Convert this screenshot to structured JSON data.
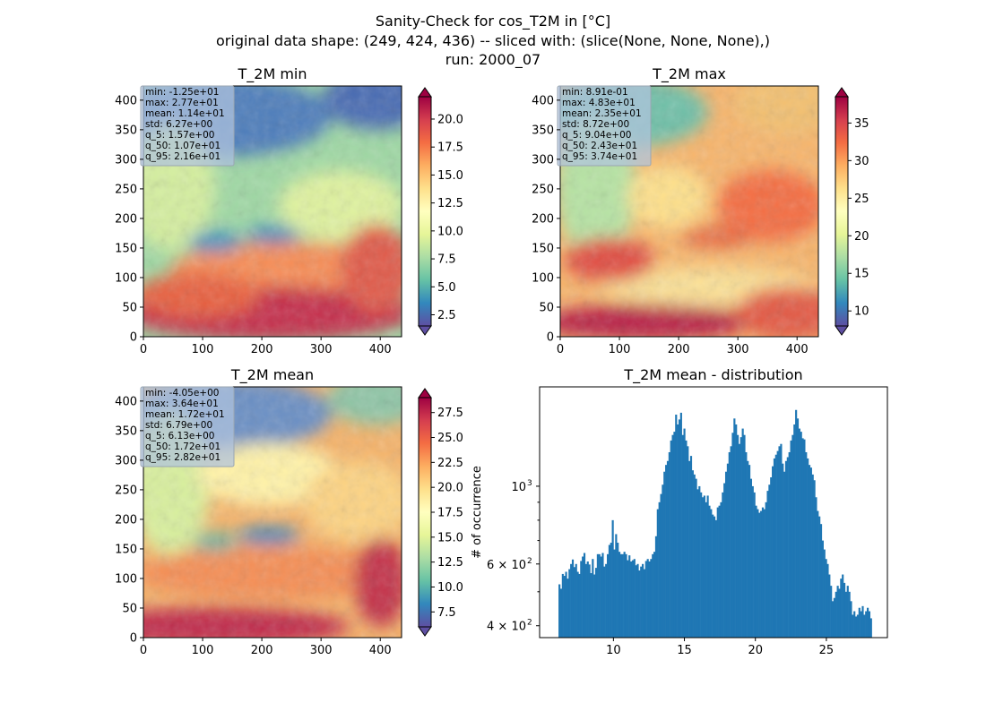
{
  "figure": {
    "title_lines": [
      "Sanity-Check for cos_T2M in [°C]",
      "original data shape: (249, 424, 436) -- sliced with: (slice(None, None, None),)",
      "run: 2000_07"
    ]
  },
  "colors": {
    "spectral_r": [
      "#5e4fa2",
      "#3288bd",
      "#66c2a5",
      "#abdda4",
      "#e6f598",
      "#ffffbf",
      "#fee08b",
      "#fdae61",
      "#f46d43",
      "#d53e4f",
      "#9e0142"
    ],
    "hist_bar": "#1f77b4",
    "statbox": "#b0c4de"
  },
  "chart_data": [
    {
      "type": "heatmap",
      "title": "T_2M min",
      "x_ticks": [
        "0",
        "100",
        "200",
        "300",
        "400"
      ],
      "y_ticks": [
        "0",
        "50",
        "100",
        "150",
        "200",
        "250",
        "300",
        "350",
        "400"
      ],
      "xlim": [
        0,
        436
      ],
      "ylim": [
        0,
        424
      ],
      "colorbar": {
        "range": [
          1.5,
          22.0
        ],
        "ticks": [
          "2.5",
          "5.0",
          "7.5",
          "10.0",
          "12.5",
          "15.0",
          "17.5",
          "20.0"
        ],
        "tick_values": [
          2.5,
          5.0,
          7.5,
          10.0,
          12.5,
          15.0,
          17.5,
          20.0
        ],
        "extend": "both"
      },
      "stats": [
        "min: -1.25e+01",
        "max: 2.77e+01",
        "mean: 1.14e+01",
        "std: 6.27e+00",
        "q_5: 1.57e+00",
        "q_50: 1.07e+01",
        "q_95: 2.16e+01"
      ]
    },
    {
      "type": "heatmap",
      "title": "T_2M max",
      "x_ticks": [
        "0",
        "100",
        "200",
        "300",
        "400"
      ],
      "y_ticks": [
        "0",
        "50",
        "100",
        "150",
        "200",
        "250",
        "300",
        "350",
        "400"
      ],
      "xlim": [
        0,
        436
      ],
      "ylim": [
        0,
        424
      ],
      "colorbar": {
        "range": [
          8.0,
          38.5
        ],
        "ticks": [
          "10",
          "15",
          "20",
          "25",
          "30",
          "35"
        ],
        "tick_values": [
          10,
          15,
          20,
          25,
          30,
          35
        ],
        "extend": "both"
      },
      "stats": [
        "min: 8.91e-01",
        "max: 4.83e+01",
        "mean: 2.35e+01",
        "std: 8.72e+00",
        "q_5: 9.04e+00",
        "q_50: 2.43e+01",
        "q_95: 3.74e+01"
      ]
    },
    {
      "type": "heatmap",
      "title": "T_2M mean",
      "x_ticks": [
        "0",
        "100",
        "200",
        "300",
        "400"
      ],
      "y_ticks": [
        "0",
        "50",
        "100",
        "150",
        "200",
        "250",
        "300",
        "350",
        "400"
      ],
      "xlim": [
        0,
        436
      ],
      "ylim": [
        0,
        424
      ],
      "colorbar": {
        "range": [
          6.0,
          29.0
        ],
        "ticks": [
          "7.5",
          "10.0",
          "12.5",
          "15.0",
          "17.5",
          "20.0",
          "22.5",
          "25.0",
          "27.5"
        ],
        "tick_values": [
          7.5,
          10.0,
          12.5,
          15.0,
          17.5,
          20.0,
          22.5,
          25.0,
          27.5
        ],
        "extend": "both"
      },
      "stats": [
        "min: -4.05e+00",
        "max: 3.64e+01",
        "mean: 1.72e+01",
        "std: 6.79e+00",
        "q_5: 6.13e+00",
        "q_50: 1.72e+01",
        "q_95: 2.82e+01"
      ]
    },
    {
      "type": "bar",
      "title": "T_2M mean - distribution",
      "ylabel": "# of occurrence",
      "xlim": [
        4.8,
        29.3
      ],
      "ylim_log": [
        370,
        1920
      ],
      "log_y": true,
      "x_ticks": [
        10,
        15,
        20,
        25
      ],
      "y_major_ticks": [
        {
          "value": 400,
          "base": "4 × 10",
          "exp": "2"
        },
        {
          "value": 600,
          "base": "6 × 10",
          "exp": "2"
        },
        {
          "value": 1000,
          "base": "10",
          "exp": "3"
        }
      ],
      "y_minor_ticks": [
        500,
        700,
        800,
        900
      ],
      "bin_start": 6.13,
      "bin_end": 28.2,
      "counts": [
        525,
        510,
        562,
        555,
        570,
        545,
        580,
        600,
        618,
        588,
        600,
        570,
        562,
        612,
        630,
        645,
        600,
        610,
        598,
        565,
        620,
        560,
        585,
        640,
        640,
        630,
        645,
        590,
        600,
        640,
        680,
        690,
        800,
        660,
        730,
        690,
        650,
        640,
        640,
        650,
        640,
        615,
        635,
        610,
        615,
        620,
        595,
        600,
        575,
        590,
        600,
        580,
        612,
        620,
        610,
        620,
        640,
        650,
        720,
        860,
        900,
        950,
        1010,
        1100,
        1150,
        1180,
        1250,
        1350,
        1400,
        1430,
        1600,
        1500,
        1550,
        1620,
        1400,
        1460,
        1350,
        1300,
        1180,
        1220,
        1110,
        1080,
        1050,
        980,
        1000,
        960,
        930,
        940,
        900,
        940,
        880,
        860,
        830,
        820,
        800,
        870,
        880,
        900,
        960,
        1020,
        1100,
        1160,
        1250,
        1300,
        1420,
        1560,
        1500,
        1400,
        1320,
        1380,
        1460,
        1400,
        1250,
        1180,
        1150,
        1050,
        1000,
        960,
        880,
        860,
        840,
        850,
        870,
        860,
        900,
        970,
        1010,
        1060,
        1140,
        1200,
        1230,
        1260,
        1300,
        1320,
        1160,
        1100,
        1180,
        1210,
        1250,
        1350,
        1400,
        1500,
        1650,
        1560,
        1460,
        1430,
        1370,
        1360,
        1250,
        1200,
        1150,
        1130,
        1080,
        1040,
        930,
        850,
        820,
        780,
        700,
        660,
        620,
        600,
        560,
        520,
        470,
        480,
        500,
        520,
        510,
        545,
        560,
        530,
        500,
        520,
        500,
        470,
        430,
        440,
        425,
        430,
        450,
        440,
        455,
        430,
        440,
        450,
        440,
        420
      ]
    }
  ]
}
